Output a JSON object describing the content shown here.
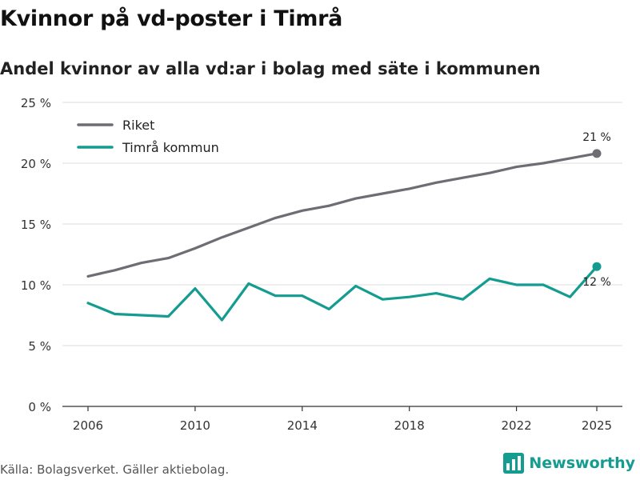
{
  "header": {
    "title": "Kvinnor på vd-poster i Timrå",
    "subtitle": "Andel kvinnor av alla vd:ar i bolag med säte i kommunen"
  },
  "footer": {
    "source": "Källa: Bolagsverket. Gäller aktiebolag.",
    "brand": "Newsworthy",
    "brand_icon": "newsworthy-bar-chart-icon"
  },
  "colors": {
    "riket": "#6e6d73",
    "timra": "#139c8f",
    "grid": "#dddddd",
    "axis": "#333333",
    "brand": "#139c8f"
  },
  "chart_data": {
    "type": "line",
    "title": "Kvinnor på vd-poster i Timrå",
    "subtitle": "Andel kvinnor av alla vd:ar i bolag med säte i kommunen",
    "xlabel": "",
    "ylabel": "",
    "x": [
      2006,
      2007,
      2008,
      2009,
      2010,
      2011,
      2012,
      2013,
      2014,
      2015,
      2016,
      2017,
      2018,
      2019,
      2020,
      2021,
      2022,
      2023,
      2024,
      2025
    ],
    "ylim": [
      0,
      25
    ],
    "xticks": [
      2006,
      2010,
      2014,
      2018,
      2022,
      2025
    ],
    "yticks": [
      0,
      5,
      10,
      15,
      20,
      25
    ],
    "ytick_labels": [
      "0 %",
      "5 %",
      "10 %",
      "15 %",
      "20 %",
      "25 %"
    ],
    "xtick_labels": [
      "2006",
      "2010",
      "2014",
      "2018",
      "2022",
      "2025"
    ],
    "grid": true,
    "legend_position": "top-left",
    "series": [
      {
        "name": "Riket",
        "values": [
          10.7,
          11.2,
          11.8,
          12.2,
          13.0,
          13.9,
          14.7,
          15.5,
          16.1,
          16.5,
          17.1,
          17.5,
          17.9,
          18.4,
          18.8,
          19.2,
          19.7,
          20.0,
          20.4,
          20.8
        ],
        "end_label": "21 %"
      },
      {
        "name": "Timrå kommun",
        "values": [
          8.5,
          7.6,
          7.5,
          7.4,
          9.7,
          7.1,
          10.1,
          9.1,
          9.1,
          8.0,
          9.9,
          8.8,
          9.0,
          9.3,
          8.8,
          10.5,
          10.0,
          10.0,
          9.0,
          11.5
        ],
        "end_label": "12 %"
      }
    ]
  }
}
